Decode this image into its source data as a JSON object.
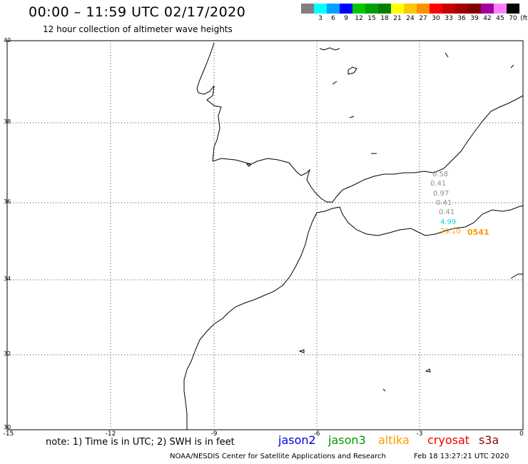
{
  "header": {
    "title": "00:00 – 11:59 UTC 02/17/2020",
    "subtitle": "12 hour collection of altimeter wave heights"
  },
  "legend": {
    "swatches": [
      {
        "color": "#808080",
        "label": ""
      },
      {
        "color": "#00ffff",
        "label": "3"
      },
      {
        "color": "#00a0ff",
        "label": "6"
      },
      {
        "color": "#0000ff",
        "label": "9"
      },
      {
        "color": "#00c800",
        "label": "12"
      },
      {
        "color": "#00a000",
        "label": "15"
      },
      {
        "color": "#008000",
        "label": "18"
      },
      {
        "color": "#ffff00",
        "label": "21"
      },
      {
        "color": "#ffc800",
        "label": "24"
      },
      {
        "color": "#ff9000",
        "label": "27"
      },
      {
        "color": "#ff0000",
        "label": "30"
      },
      {
        "color": "#c80000",
        "label": "33"
      },
      {
        "color": "#a00000",
        "label": "36"
      },
      {
        "color": "#800000",
        "label": "39"
      },
      {
        "color": "#a000a0",
        "label": "42"
      },
      {
        "color": "#ff80ff",
        "label": "45"
      },
      {
        "color": "#000000",
        "label": "70"
      }
    ],
    "unit": "(ft)"
  },
  "axes": {
    "lat_labels": [
      "40",
      "38",
      "36",
      "34",
      "32",
      "30"
    ],
    "lon_labels": [
      "-15",
      "-12",
      "-9",
      "-6",
      "-3",
      "0"
    ]
  },
  "wave_heights": [
    {
      "text": "0.58",
      "color": "#909090"
    },
    {
      "text": "0.41",
      "color": "#909090"
    },
    {
      "text": "0.97",
      "color": "#909090"
    },
    {
      "text": "0.41",
      "color": "#909090"
    },
    {
      "text": "0.41",
      "color": "#909090"
    },
    {
      "text": "4.99",
      "color": "#00d8e0"
    },
    {
      "text": "29.10",
      "color": "#ff9900"
    },
    {
      "text": "0541",
      "color": "#ff9900"
    }
  ],
  "footer": {
    "note": "note: 1) Time is in UTC; 2) SWH is in feet",
    "satellites": [
      {
        "name": "jason2",
        "color": "#0000dd"
      },
      {
        "name": "jason3",
        "color": "#009900"
      },
      {
        "name": "altika",
        "color": "#ff9900"
      },
      {
        "name": "cryosat",
        "color": "#ee0000"
      },
      {
        "name": "s3a",
        "color": "#990000"
      }
    ],
    "credit": "NOAA/NESDIS Center for Satellite Applications and Research",
    "timestamp": "Feb 18 13:27:21 UTC 2020"
  }
}
